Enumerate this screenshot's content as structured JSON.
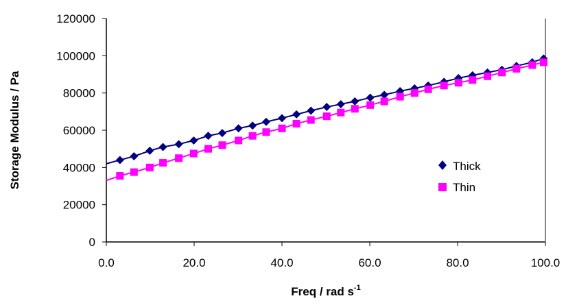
{
  "chart_data": {
    "type": "scatter",
    "title": "",
    "xlabel": "Freq / rad s",
    "xlabel_superscript": "-1",
    "ylabel": "Storage  Modulus / Pa",
    "xlim": [
      0,
      100
    ],
    "ylim": [
      0,
      120000
    ],
    "xticks": [
      "0.0",
      "20.0",
      "40.0",
      "60.0",
      "80.0",
      "100.0"
    ],
    "yticks": [
      "0",
      "20000",
      "40000",
      "60000",
      "80000",
      "100000",
      "120000"
    ],
    "grid": false,
    "legend_position": "right",
    "x": [
      3.1,
      6.3,
      9.9,
      12.9,
      16.5,
      19.9,
      23.2,
      26.4,
      30.1,
      33.3,
      36.4,
      40.0,
      43.3,
      46.6,
      50.2,
      53.4,
      56.6,
      60.1,
      63.3,
      66.9,
      70.2,
      73.3,
      76.9,
      80.2,
      83.4,
      86.8,
      90.1,
      93.4,
      97.0,
      99.6
    ],
    "series": [
      {
        "name": "Thick",
        "color": "#000080",
        "marker": "diamond",
        "trend_intercept": 42000,
        "values": [
          44000,
          46000,
          49000,
          51000,
          52500,
          54500,
          57000,
          58500,
          61000,
          62500,
          64500,
          66500,
          68500,
          70500,
          72500,
          74000,
          75500,
          77500,
          79000,
          81000,
          82500,
          84000,
          86000,
          88000,
          89500,
          91000,
          92500,
          94500,
          96500,
          98500
        ]
      },
      {
        "name": "Thin",
        "color": "#FF00FF",
        "marker": "square",
        "trend_intercept": 33000,
        "values": [
          35500,
          37500,
          40000,
          42500,
          45000,
          47500,
          50000,
          52000,
          54500,
          57000,
          59000,
          61000,
          63500,
          65500,
          67500,
          69500,
          71500,
          73500,
          75500,
          78000,
          80000,
          82000,
          84000,
          85500,
          87000,
          89000,
          91000,
          93000,
          95000,
          96500
        ]
      }
    ]
  }
}
